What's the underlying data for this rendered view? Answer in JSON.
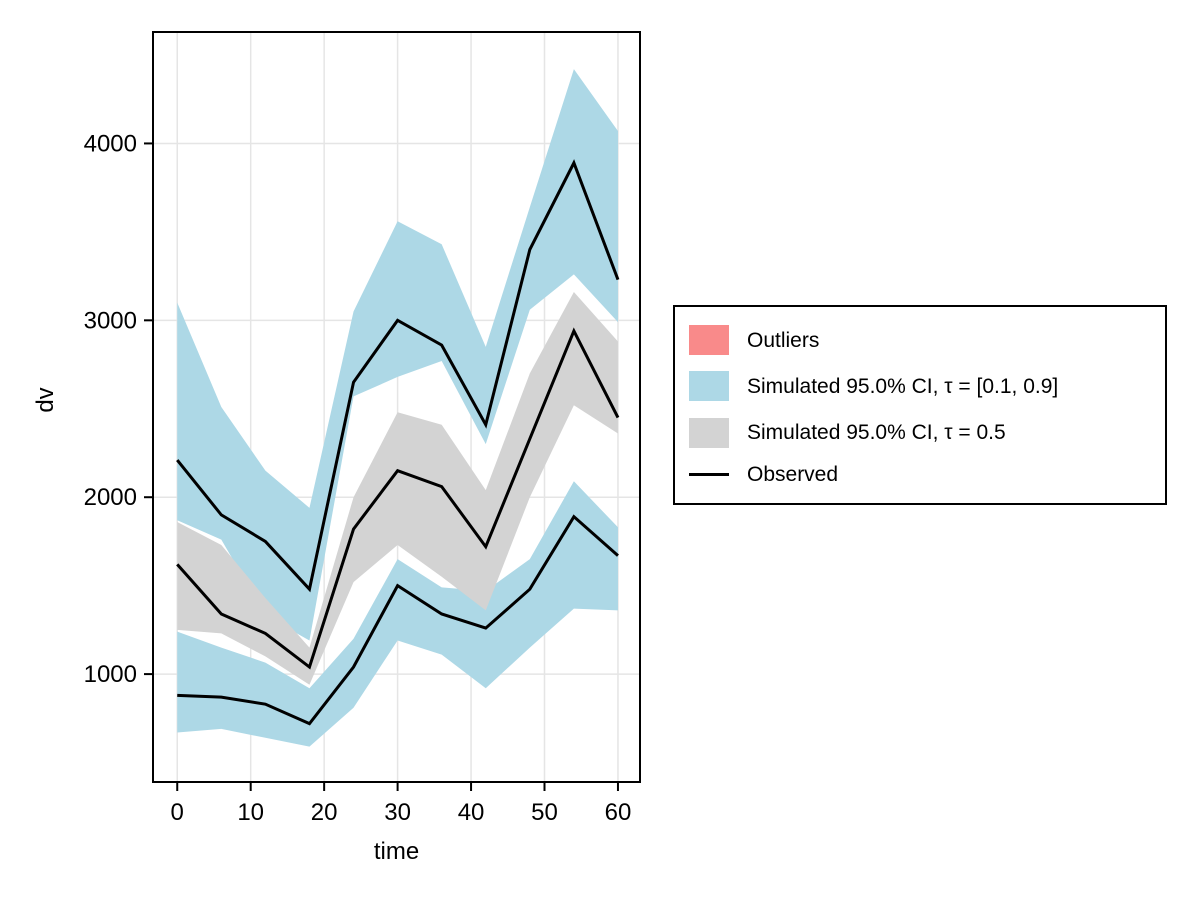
{
  "figure": {
    "background": "#ffffff",
    "xlabel": "time",
    "ylabel": "dv",
    "x_ticks": [
      0,
      10,
      20,
      30,
      40,
      50,
      60
    ],
    "y_ticks": [
      1000,
      2000,
      3000,
      4000
    ],
    "spine_color": "#000000",
    "grid_color": "#e5e5e5",
    "tick_label_color": "#000000"
  },
  "legend": {
    "items": [
      {
        "label": "Outliers",
        "swatch": "patch",
        "color": "#f98a8a"
      },
      {
        "label": "Simulated 95.0% CI, τ = [0.1, 0.9]",
        "swatch": "patch",
        "color": "#add8e6"
      },
      {
        "label": "Simulated 95.0% CI, τ = 0.5",
        "swatch": "patch",
        "color": "#d3d3d3"
      },
      {
        "label": "Observed",
        "swatch": "line",
        "color": "#000000"
      }
    ]
  },
  "chart_data": {
    "type": "area",
    "title": "",
    "xlabel": "time",
    "ylabel": "dv",
    "x": [
      0,
      6,
      12,
      18,
      24,
      30,
      36,
      42,
      48,
      54,
      60
    ],
    "xlim": [
      -3.3,
      63
    ],
    "ylim": [
      390,
      4630
    ],
    "grid": true,
    "legend_position": "outside-right",
    "bands": [
      {
        "name": "Simulated 95.0% CI, τ = [0.1, 0.9] — upper quantile band",
        "color": "#add8e6",
        "upper": [
          3100,
          2510,
          2150,
          1940,
          3050,
          3560,
          3430,
          2850,
          3640,
          4420,
          4070
        ],
        "lower": [
          1870,
          1760,
          1330,
          1190,
          2570,
          2680,
          2770,
          2300,
          3060,
          3260,
          2990
        ]
      },
      {
        "name": "Simulated 95.0% CI, τ = [0.1, 0.9] — lower quantile band",
        "color": "#add8e6",
        "upper": [
          1240,
          1150,
          1065,
          920,
          1200,
          1650,
          1490,
          1470,
          1650,
          2090,
          1830
        ],
        "lower": [
          670,
          690,
          640,
          590,
          810,
          1190,
          1110,
          920,
          1150,
          1370,
          1360
        ]
      },
      {
        "name": "Simulated 95.0% CI, τ = 0.5 — median band",
        "color": "#d3d3d3",
        "upper": [
          1860,
          1730,
          1430,
          1150,
          2000,
          2480,
          2410,
          2040,
          2700,
          3160,
          2880
        ],
        "lower": [
          1250,
          1230,
          1100,
          940,
          1520,
          1730,
          1550,
          1360,
          2000,
          2520,
          2360
        ]
      }
    ],
    "lines": [
      {
        "name": "Observed upper quantile (0.9)",
        "color": "#000000",
        "values": [
          2210,
          1900,
          1750,
          1480,
          2650,
          3000,
          2860,
          2410,
          3400,
          3890,
          3230
        ]
      },
      {
        "name": "Observed median (0.5)",
        "color": "#000000",
        "values": [
          1620,
          1340,
          1230,
          1040,
          1820,
          2150,
          2060,
          1720,
          2330,
          2940,
          2450
        ]
      },
      {
        "name": "Observed lower quantile (0.1)",
        "color": "#000000",
        "values": [
          880,
          870,
          830,
          720,
          1040,
          1500,
          1340,
          1260,
          1480,
          1890,
          1670
        ]
      }
    ]
  }
}
